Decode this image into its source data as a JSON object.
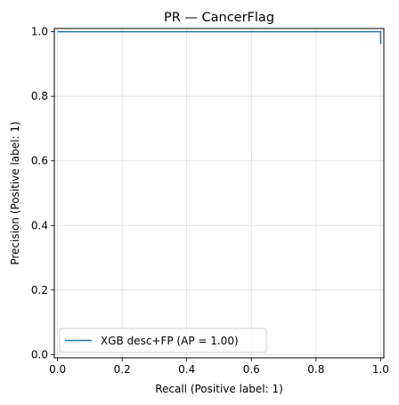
{
  "chart_data": {
    "type": "line",
    "title": "PR — CancerFlag",
    "xlabel": "Recall (Positive label: 1)",
    "ylabel": "Precision (Positive label: 1)",
    "xlim": [
      -0.01,
      1.01
    ],
    "ylim": [
      -0.01,
      1.01
    ],
    "xticks": [
      "0.0",
      "0.2",
      "0.4",
      "0.6",
      "0.8",
      "1.0"
    ],
    "xtick_values": [
      0.0,
      0.2,
      0.4,
      0.6,
      0.8,
      1.0
    ],
    "yticks": [
      "0.0",
      "0.2",
      "0.4",
      "0.6",
      "0.8",
      "1.0"
    ],
    "ytick_values": [
      0.0,
      0.2,
      0.4,
      0.6,
      0.8,
      1.0
    ],
    "grid": true,
    "legend_position": "lower-left",
    "series": [
      {
        "name": "XGB desc+FP (AP = 1.00)",
        "color": "#1f77b4",
        "x": [
          0.0,
          0.997,
          0.997,
          1.0,
          1.0
        ],
        "y": [
          1.0,
          1.0,
          1.0,
          1.0,
          0.962
        ]
      }
    ]
  }
}
